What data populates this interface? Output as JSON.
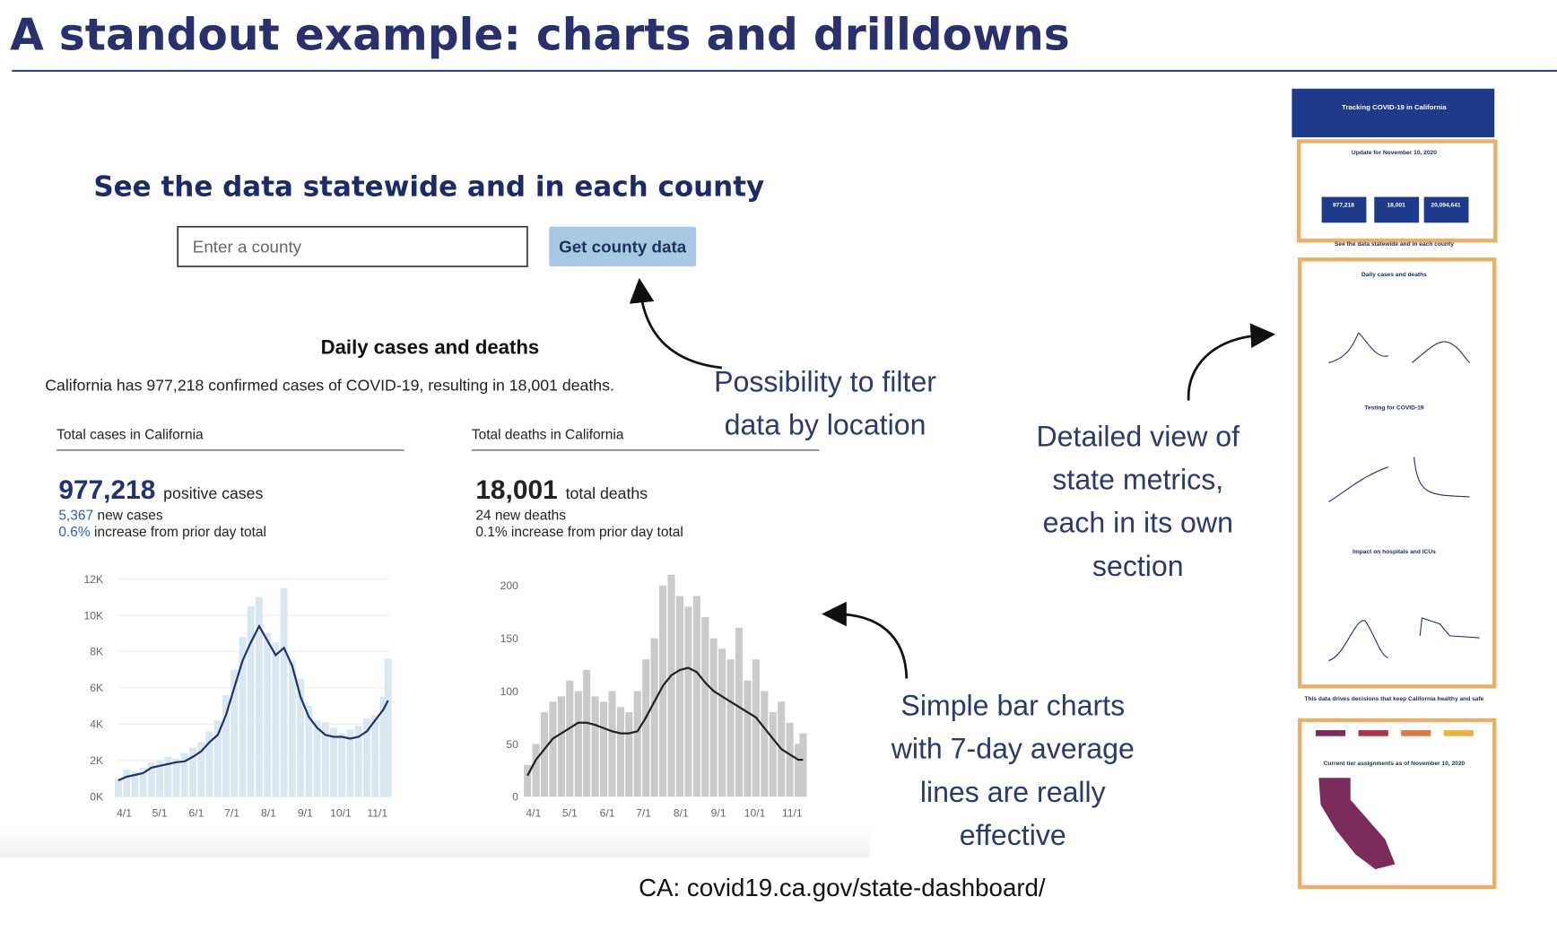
{
  "slide": {
    "title": "A standout example: charts and drilldowns",
    "source": "CA: covid19.ca.gov/state-dashboard/"
  },
  "dashboard": {
    "heading": "See the data statewide and in each county",
    "search_placeholder": "Enter a county",
    "button": "Get county data",
    "section_title": "Daily cases and deaths",
    "summary": "California has 977,218 confirmed cases of COVID-19, resulting in 18,001 deaths.",
    "cards": [
      {
        "label": "Total cases in California",
        "headline": "977,218",
        "headline_unit": "positive cases",
        "line1_value": "5,367",
        "line1_text": "new cases",
        "line2_value": "0.6%",
        "line2_text": "increase from prior day total"
      },
      {
        "label": "Total deaths in California",
        "headline": "18,001",
        "headline_unit": "total deaths",
        "line1_text": "24 new deaths",
        "line2_text": "0.1% increase from prior day total"
      }
    ]
  },
  "chart_data": [
    {
      "type": "bar",
      "x": [
        87,
        94,
        101,
        108,
        115,
        122,
        129,
        136,
        143,
        150,
        157,
        164,
        171,
        178,
        185,
        192,
        199,
        206,
        213,
        220,
        227,
        234,
        241,
        248,
        255,
        262,
        269,
        276,
        283,
        290,
        297,
        304,
        311,
        315
      ],
      "values": [
        1000,
        1500,
        1400,
        1600,
        1900,
        2000,
        2200,
        2100,
        2400,
        2700,
        3000,
        3600,
        4200,
        5600,
        7000,
        8800,
        10500,
        11000,
        9000,
        8500,
        11500,
        7500,
        6500,
        5000,
        4200,
        4100,
        3800,
        3500,
        3700,
        3900,
        4300,
        4500,
        5500,
        7600
      ],
      "color": "#d9e7f0",
      "line": {
        "values": [
          900,
          1100,
          1200,
          1300,
          1600,
          1700,
          1800,
          1900,
          1950,
          2200,
          2500,
          3000,
          3400,
          4500,
          6000,
          7500,
          8500,
          9400,
          8600,
          7800,
          8200,
          7200,
          5500,
          4400,
          3800,
          3400,
          3300,
          3300,
          3200,
          3300,
          3600,
          4200,
          4800,
          5300
        ],
        "color": "#1f3370"
      },
      "xlim": [
        86,
        316
      ],
      "xticks": [
        {
          "value": 92,
          "label": "4/1"
        },
        {
          "value": 122,
          "label": "5/1"
        },
        {
          "value": 153,
          "label": "6/1"
        },
        {
          "value": 183,
          "label": "7/1"
        },
        {
          "value": 214,
          "label": "8/1"
        },
        {
          "value": 245,
          "label": "9/1"
        },
        {
          "value": 275,
          "label": "10/1"
        },
        {
          "value": 306,
          "label": "11/1"
        }
      ],
      "ylim": [
        0,
        12800
      ],
      "yticks": [
        {
          "value": 0,
          "label": "0K"
        },
        {
          "value": 2000,
          "label": "2K"
        },
        {
          "value": 4000,
          "label": "4K"
        },
        {
          "value": 6000,
          "label": "6K"
        },
        {
          "value": 8000,
          "label": "8K"
        },
        {
          "value": 10000,
          "label": "10K"
        },
        {
          "value": 12000,
          "label": "12K"
        }
      ],
      "grid": true
    },
    {
      "type": "bar",
      "x": [
        87,
        94,
        101,
        108,
        115,
        122,
        129,
        136,
        143,
        150,
        157,
        164,
        171,
        178,
        185,
        192,
        199,
        206,
        213,
        220,
        227,
        234,
        241,
        248,
        255,
        262,
        269,
        276,
        283,
        290,
        297,
        304,
        311,
        315
      ],
      "values": [
        30,
        50,
        80,
        90,
        95,
        110,
        100,
        120,
        95,
        90,
        100,
        85,
        80,
        100,
        130,
        150,
        200,
        210,
        190,
        180,
        190,
        170,
        150,
        140,
        130,
        160,
        110,
        130,
        100,
        80,
        90,
        70,
        50,
        60
      ],
      "color": "#cacaca",
      "line": {
        "values": [
          20,
          35,
          45,
          55,
          60,
          65,
          70,
          70,
          68,
          65,
          62,
          60,
          60,
          62,
          75,
          90,
          105,
          115,
          120,
          122,
          118,
          108,
          100,
          95,
          90,
          85,
          80,
          75,
          65,
          55,
          45,
          40,
          35,
          35
        ],
        "color": "#222222"
      },
      "xlim": [
        86,
        316
      ],
      "xticks": [
        {
          "value": 92,
          "label": "4/1"
        },
        {
          "value": 122,
          "label": "5/1"
        },
        {
          "value": 153,
          "label": "6/1"
        },
        {
          "value": 183,
          "label": "7/1"
        },
        {
          "value": 214,
          "label": "8/1"
        },
        {
          "value": 245,
          "label": "9/1"
        },
        {
          "value": 275,
          "label": "10/1"
        },
        {
          "value": 306,
          "label": "11/1"
        }
      ],
      "ylim": [
        0,
        220
      ],
      "yticks": [
        0,
        50,
        100,
        150,
        200
      ],
      "grid": false
    }
  ],
  "annotations": [
    [
      "Possibility to filter",
      "data by location"
    ],
    [
      "Detailed view of",
      "state metrics,",
      "each in its own",
      "section"
    ],
    [
      "Simple bar charts",
      "with 7-day average",
      "lines are really",
      "effective"
    ]
  ],
  "thumbnail": {
    "header": "Tracking COVID-19 in California",
    "update": "Update for November 10, 2020",
    "stats": [
      "977,218",
      "18,001",
      "20,094,641"
    ],
    "section": "See the data statewide and in each county",
    "daily": "Daily cases and deaths",
    "testing": "Testing for COVID-19",
    "hospitals": "Impact on hospitals and ICUs",
    "decisions": "This data drives decisions that keep California healthy and safe",
    "tiers": "Current tier assignments as of November 10, 2020"
  }
}
